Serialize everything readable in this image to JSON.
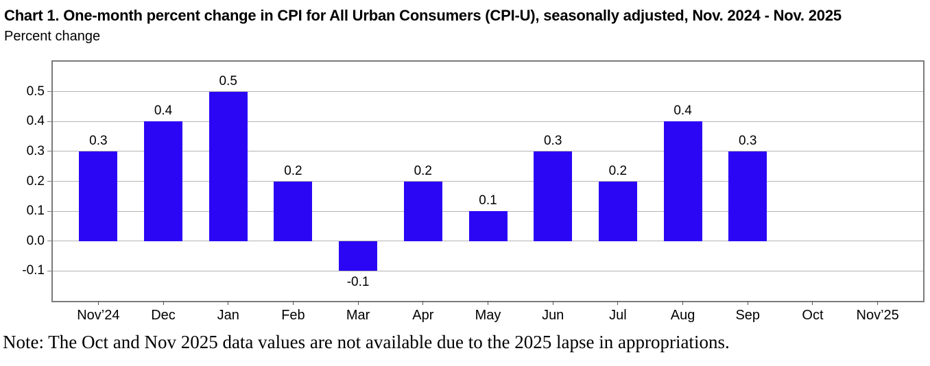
{
  "chart_data": {
    "type": "bar",
    "title": "Chart 1. One-month percent change in CPI for All Urban Consumers (CPI-U), seasonally adjusted, Nov. 2024 - Nov. 2025",
    "ylabel": "Percent change",
    "xlabel": "",
    "categories": [
      "Nov’24",
      "Dec",
      "Jan",
      "Feb",
      "Mar",
      "Apr",
      "May",
      "Jun",
      "Jul",
      "Aug",
      "Sep",
      "Oct",
      "Nov’25"
    ],
    "values": [
      0.3,
      0.4,
      0.5,
      0.2,
      -0.1,
      0.2,
      0.1,
      0.3,
      0.2,
      0.4,
      0.3,
      null,
      null
    ],
    "data_labels": [
      "0.3",
      "0.4",
      "0.5",
      "0.2",
      "-0.1",
      "0.2",
      "0.1",
      "0.3",
      "0.2",
      "0.4",
      "0.3",
      "",
      ""
    ],
    "missing_categories": [
      "Oct",
      "Nov’25"
    ],
    "yticks": [
      0.5,
      0.4,
      0.3,
      0.2,
      0.1,
      0.0,
      -0.1
    ],
    "ytick_labels": [
      "0.5",
      "0.4",
      "0.3",
      "0.2",
      "0.1",
      "0.0",
      "-0.1"
    ],
    "ylim": [
      -0.2,
      0.6
    ],
    "grid": true,
    "legend": "none",
    "note": "Note: The Oct and Nov 2025 data values are not available due to the 2025 lapse in appropriations.",
    "colors": {
      "bar": "#2a06f5",
      "gridline": "#b3b3b3",
      "frame": "#7a7a7a",
      "tick": "#555555",
      "text": "#000000"
    }
  }
}
